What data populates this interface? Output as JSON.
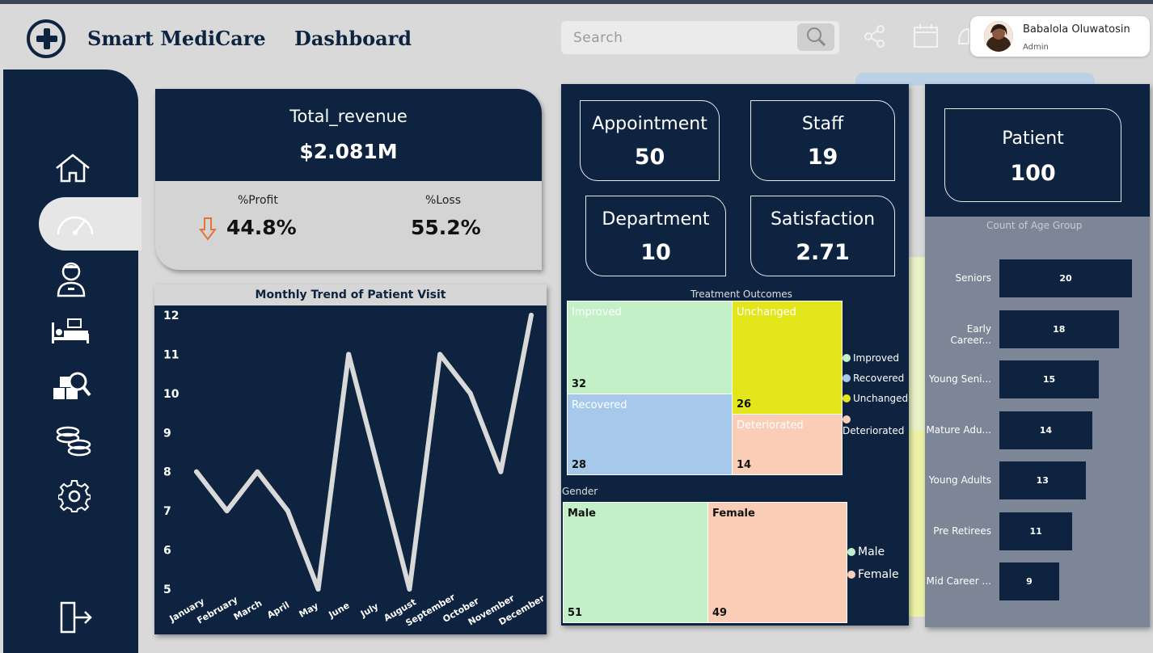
{
  "header": {
    "title_part1": "Smart MediCare",
    "title_part2": "Dashboard",
    "search_placeholder": "Search",
    "user_name": "Babalola Oluwatosin",
    "user_role": "Admin"
  },
  "sidebar": {
    "items": [
      "home-icon",
      "gauge-icon",
      "doctor-icon",
      "hospital-bed-icon",
      "inventory-search-icon",
      "coins-icon",
      "gear-icon",
      "logout-icon"
    ],
    "active_index": 1
  },
  "revenue": {
    "label": "Total_revenue",
    "value": "$2.081M",
    "profit_label": "%Profit",
    "profit_value": "44.8%",
    "loss_label": "%Loss",
    "loss_value": "55.2%",
    "profit_arrow_color": "#e8713a"
  },
  "kpis": {
    "appointment": {
      "label": "Appointment",
      "value": "50"
    },
    "staff": {
      "label": "Staff",
      "value": "19"
    },
    "department": {
      "label": "Department",
      "value": "10"
    },
    "satisfaction": {
      "label": "Satisfaction",
      "value": "2.71"
    },
    "patient": {
      "label": "Patient",
      "value": "100"
    }
  },
  "treatment": {
    "title": "Treatment Outcomes",
    "items": [
      {
        "label": "Improved",
        "value": "32",
        "color": "#c4f0c7"
      },
      {
        "label": "Recovered",
        "value": "28",
        "color": "#a6c8ea"
      },
      {
        "label": "Unchanged",
        "value": "26",
        "color": "#e2e61a"
      },
      {
        "label": "Deteriorated",
        "value": "14",
        "color": "#f9cdb6"
      }
    ]
  },
  "gender": {
    "title": "Gender",
    "items": [
      {
        "label": "Male",
        "value": "51",
        "color": "#c4f0c7"
      },
      {
        "label": "Female",
        "value": "49",
        "color": "#f9cdb6"
      }
    ]
  },
  "age": {
    "title": "Count of Age Group",
    "items": [
      {
        "label": "Seniors",
        "value": "20"
      },
      {
        "label": "Early Career...",
        "value": "18"
      },
      {
        "label": "Young Seni...",
        "value": "15"
      },
      {
        "label": "Mature Adu...",
        "value": "14"
      },
      {
        "label": "Young Adults",
        "value": "13"
      },
      {
        "label": "Pre Retirees",
        "value": "11"
      },
      {
        "label": "Mid Career ...",
        "value": "9"
      }
    ]
  },
  "chart_data": {
    "type": "line",
    "title": "Monthly Trend of Patient Visit",
    "categories": [
      "January",
      "February",
      "March",
      "April",
      "May",
      "June",
      "July",
      "August",
      "September",
      "October",
      "November",
      "December"
    ],
    "values": [
      8,
      7,
      8,
      7,
      5,
      11,
      8,
      5,
      11,
      10,
      8,
      12
    ],
    "ylim": [
      5,
      12
    ],
    "yticks": [
      5,
      6,
      7,
      8,
      9,
      10,
      11,
      12
    ],
    "line_color": "#d9d9d9",
    "grid": false
  }
}
